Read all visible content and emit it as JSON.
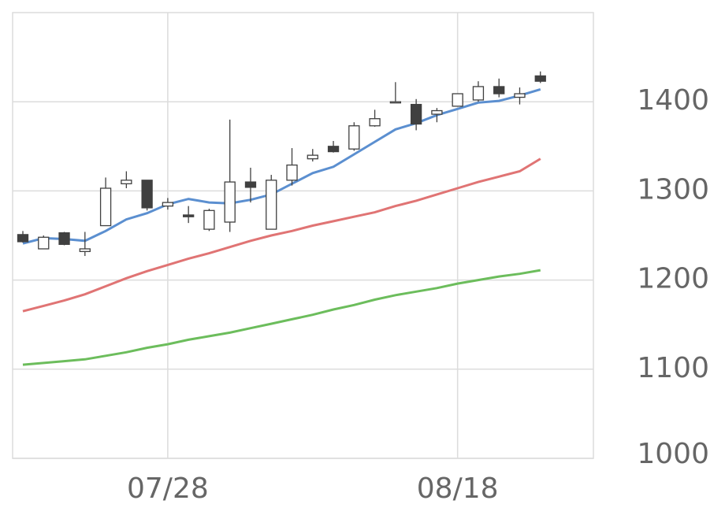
{
  "chart_data": {
    "type": "candlestick",
    "categories": [
      null,
      null,
      null,
      null,
      null,
      null,
      null,
      "07/28",
      null,
      null,
      null,
      null,
      null,
      null,
      null,
      null,
      null,
      null,
      null,
      null,
      null,
      "08/18",
      null,
      null,
      null,
      null
    ],
    "open": [
      1251,
      1235,
      1253,
      1232,
      1261,
      1308,
      1312,
      1283,
      1273,
      1257,
      1265,
      1310,
      1257,
      1312,
      1336,
      1350,
      1347,
      1373,
      1399,
      1397,
      1386,
      1395,
      1402,
      1417,
      1405,
      1429
    ],
    "high": [
      1255,
      1250,
      1254,
      1254,
      1315,
      1322,
      1312,
      1292,
      1283,
      1280,
      1380,
      1326,
      1318,
      1348,
      1347,
      1356,
      1377,
      1391,
      1422,
      1403,
      1393,
      1409,
      1423,
      1426,
      1416,
      1434
    ],
    "low": [
      1242,
      1235,
      1239,
      1227,
      1261,
      1303,
      1278,
      1279,
      1264,
      1255,
      1254,
      1287,
      1257,
      1306,
      1333,
      1343,
      1345,
      1372,
      1399,
      1368,
      1377,
      1395,
      1400,
      1405,
      1397,
      1421
    ],
    "close": [
      1243,
      1248,
      1240,
      1235,
      1303,
      1312,
      1281,
      1287,
      1271,
      1278,
      1310,
      1304,
      1312,
      1329,
      1340,
      1344,
      1373,
      1381,
      1400,
      1375,
      1390,
      1409,
      1417,
      1409,
      1409,
      1423
    ],
    "moving_averages": [
      {
        "color": "#5b8fd0",
        "values": [
          1241,
          1247,
          1246,
          1244,
          1255,
          1268,
          1275,
          1285,
          1291,
          1287,
          1286,
          1290,
          1296,
          1308,
          1320,
          1327,
          1341,
          1355,
          1369,
          1376,
          1385,
          1392,
          1399,
          1401,
          1407,
          1414
        ]
      },
      {
        "color": "#e07474",
        "values": [
          1165,
          1171,
          1177,
          1184,
          1193,
          1202,
          1210,
          1217,
          1224,
          1230,
          1237,
          1244,
          1250,
          1255,
          1261,
          1266,
          1271,
          1276,
          1283,
          1289,
          1296,
          1303,
          1310,
          1316,
          1322,
          1336
        ]
      },
      {
        "color": "#6cbd5c",
        "values": [
          1105,
          1107,
          1109,
          1111,
          1115,
          1119,
          1124,
          1128,
          1133,
          1137,
          1141,
          1146,
          1151,
          1156,
          1161,
          1167,
          1172,
          1178,
          1183,
          1187,
          1191,
          1196,
          1200,
          1204,
          1207,
          1211
        ]
      }
    ],
    "ylim": [
      1000,
      1500
    ],
    "yticks": [
      1000,
      1100,
      1200,
      1300,
      1400
    ],
    "grid": true,
    "up_color": "#ffffff",
    "down_color": "#404040",
    "edge_color": "#404040"
  }
}
